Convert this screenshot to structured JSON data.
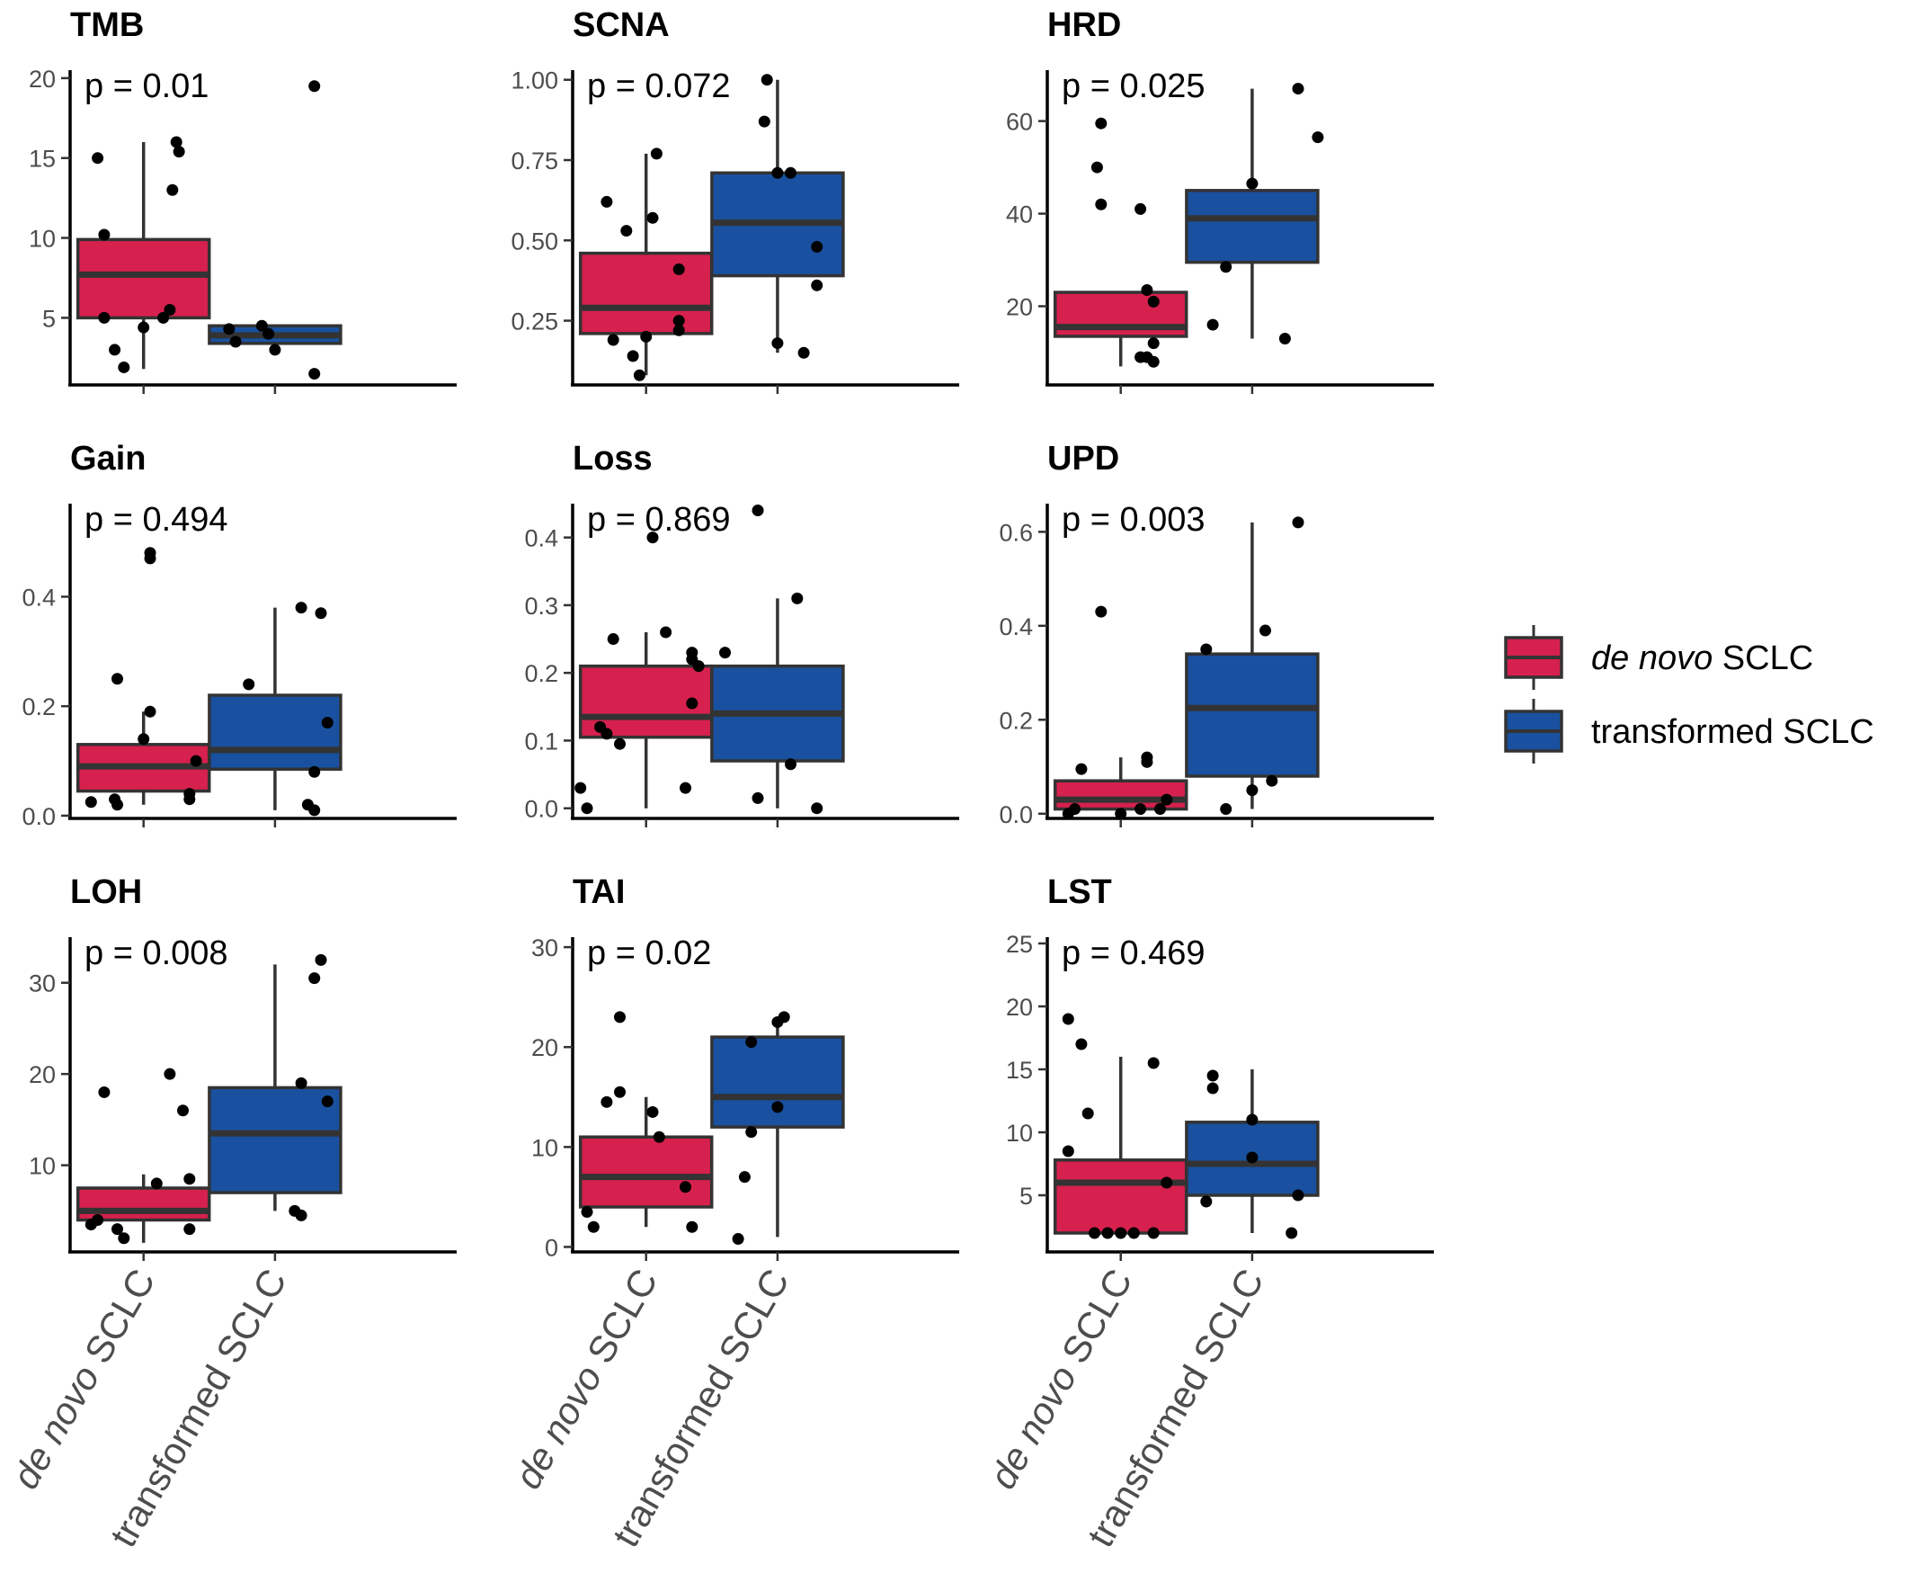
{
  "legend": {
    "items": [
      {
        "italic": "de novo",
        "rest": " SCLC",
        "color": "#d6204e"
      },
      {
        "italic": "",
        "rest": "transformed SCLC",
        "color": "#1951a0"
      }
    ]
  },
  "chart_data": [
    {
      "type": "box",
      "title": "TMB",
      "pvalue": "p = 0.01",
      "categories": [
        "de novo SCLC",
        "transformed SCLC"
      ],
      "yticks": [
        "5",
        "10",
        "15",
        "20"
      ],
      "ylim": [
        0.8,
        20.5
      ],
      "boxes": [
        {
          "whisker_low": 1.8,
          "q1": 5.0,
          "median": 7.7,
          "q3": 9.9,
          "whisker_high": 16.0
        },
        {
          "whisker_low": 3.4,
          "q1": 3.4,
          "median": 3.9,
          "q3": 4.5,
          "whisker_high": 4.5
        }
      ],
      "points": [
        [
          [
            -0.35,
            15.0
          ],
          [
            -0.3,
            10.2
          ],
          [
            -0.3,
            5.0
          ],
          [
            -0.22,
            3.0
          ],
          [
            -0.15,
            1.9
          ],
          [
            0.0,
            4.4
          ],
          [
            0.15,
            5.0
          ],
          [
            0.22,
            13.0
          ],
          [
            0.25,
            16.0
          ],
          [
            0.27,
            15.4
          ],
          [
            0.2,
            5.5
          ]
        ],
        [
          [
            -0.35,
            4.3
          ],
          [
            -0.3,
            3.5
          ],
          [
            -0.1,
            4.5
          ],
          [
            -0.05,
            4.0
          ],
          [
            0.0,
            3.0
          ],
          [
            0.3,
            1.5
          ],
          [
            0.3,
            19.5
          ]
        ]
      ]
    },
    {
      "type": "box",
      "title": "SCNA",
      "pvalue": "p = 0.072",
      "categories": [
        "de novo SCLC",
        "transformed SCLC"
      ],
      "yticks": [
        "0.25",
        "0.50",
        "0.75",
        "1.00"
      ],
      "ylim": [
        0.05,
        1.03
      ],
      "boxes": [
        {
          "whisker_low": 0.08,
          "q1": 0.21,
          "median": 0.29,
          "q3": 0.46,
          "whisker_high": 0.77
        },
        {
          "whisker_low": 0.15,
          "q1": 0.39,
          "median": 0.555,
          "q3": 0.71,
          "whisker_high": 1.0
        }
      ],
      "points": [
        [
          [
            -0.3,
            0.62
          ],
          [
            -0.15,
            0.53
          ],
          [
            -0.25,
            0.19
          ],
          [
            -0.05,
            0.08
          ],
          [
            -0.1,
            0.14
          ],
          [
            0.05,
            0.57
          ],
          [
            0.08,
            0.77
          ],
          [
            0.25,
            0.41
          ],
          [
            0.25,
            0.25
          ],
          [
            0.25,
            0.22
          ],
          [
            0.0,
            0.2
          ]
        ],
        [
          [
            -0.1,
            0.87
          ],
          [
            -0.08,
            1.0
          ],
          [
            0.0,
            0.71
          ],
          [
            0.0,
            0.18
          ],
          [
            0.2,
            0.15
          ],
          [
            0.3,
            0.36
          ],
          [
            0.3,
            0.48
          ],
          [
            0.1,
            0.71
          ]
        ]
      ]
    },
    {
      "type": "box",
      "title": "HRD",
      "pvalue": "p = 0.025",
      "categories": [
        "de novo SCLC",
        "transformed SCLC"
      ],
      "yticks": [
        "20",
        "40",
        "60"
      ],
      "ylim": [
        3,
        71
      ],
      "boxes": [
        {
          "whisker_low": 7.0,
          "q1": 13.5,
          "median": 15.5,
          "q3": 23.0,
          "whisker_high": 23.0
        },
        {
          "whisker_low": 13.0,
          "q1": 29.5,
          "median": 39.0,
          "q3": 45.0,
          "whisker_high": 67.0
        }
      ],
      "points": [
        [
          [
            -0.15,
            59.5
          ],
          [
            -0.18,
            50.0
          ],
          [
            -0.15,
            42.0
          ],
          [
            0.15,
            41.0
          ],
          [
            0.15,
            9.0
          ],
          [
            0.2,
            9.0
          ],
          [
            0.25,
            8.0
          ],
          [
            0.25,
            12.0
          ],
          [
            0.2,
            23.5
          ],
          [
            0.25,
            21.0
          ]
        ],
        [
          [
            -0.2,
            28.5
          ],
          [
            -0.3,
            16.0
          ],
          [
            0.0,
            46.5
          ],
          [
            0.25,
            13.0
          ],
          [
            0.35,
            67.0
          ],
          [
            0.5,
            56.5
          ]
        ]
      ]
    },
    {
      "type": "box",
      "title": "Gain",
      "pvalue": "p = 0.494",
      "categories": [
        "de novo SCLC",
        "transformed SCLC"
      ],
      "yticks": [
        "0.0",
        "0.2",
        "0.4"
      ],
      "ylim": [
        -0.005,
        0.57
      ],
      "boxes": [
        {
          "whisker_low": 0.02,
          "q1": 0.045,
          "median": 0.09,
          "q3": 0.13,
          "whisker_high": 0.19
        },
        {
          "whisker_low": 0.01,
          "q1": 0.085,
          "median": 0.12,
          "q3": 0.22,
          "whisker_high": 0.38
        }
      ],
      "points": [
        [
          [
            -0.4,
            0.025
          ],
          [
            -0.22,
            0.03
          ],
          [
            -0.2,
            0.02
          ],
          [
            -0.2,
            0.25
          ],
          [
            0.0,
            0.14
          ],
          [
            0.05,
            0.48
          ],
          [
            0.05,
            0.47
          ],
          [
            0.05,
            0.19
          ],
          [
            0.35,
            0.03
          ],
          [
            0.35,
            0.04
          ],
          [
            0.4,
            0.1
          ]
        ],
        [
          [
            -0.2,
            0.24
          ],
          [
            0.2,
            0.38
          ],
          [
            0.25,
            0.02
          ],
          [
            0.3,
            0.08
          ],
          [
            0.3,
            0.01
          ],
          [
            0.35,
            0.37
          ],
          [
            0.4,
            0.17
          ]
        ]
      ]
    },
    {
      "type": "box",
      "title": "Loss",
      "pvalue": "p = 0.869",
      "categories": [
        "de novo SCLC",
        "transformed SCLC"
      ],
      "yticks": [
        "0.0",
        "0.1",
        "0.2",
        "0.3",
        "0.4"
      ],
      "ylim": [
        -0.015,
        0.45
      ],
      "boxes": [
        {
          "whisker_low": 0.0,
          "q1": 0.105,
          "median": 0.135,
          "q3": 0.21,
          "whisker_high": 0.26
        },
        {
          "whisker_low": 0.0,
          "q1": 0.07,
          "median": 0.14,
          "q3": 0.21,
          "whisker_high": 0.31
        }
      ],
      "points": [
        [
          [
            -0.5,
            0.03
          ],
          [
            -0.45,
            0.0
          ],
          [
            -0.35,
            0.12
          ],
          [
            -0.3,
            0.11
          ],
          [
            -0.25,
            0.25
          ],
          [
            -0.2,
            0.095
          ],
          [
            0.05,
            0.4
          ],
          [
            0.15,
            0.26
          ],
          [
            0.3,
            0.03
          ],
          [
            0.35,
            0.23
          ],
          [
            0.35,
            0.22
          ],
          [
            0.35,
            0.155
          ],
          [
            0.4,
            0.21
          ]
        ],
        [
          [
            -0.4,
            0.23
          ],
          [
            -0.15,
            0.44
          ],
          [
            -0.15,
            0.015
          ],
          [
            0.15,
            0.31
          ],
          [
            0.1,
            0.065
          ],
          [
            0.3,
            0.0
          ]
        ]
      ]
    },
    {
      "type": "box",
      "title": "UPD",
      "pvalue": "p = 0.003",
      "categories": [
        "de novo SCLC",
        "transformed SCLC"
      ],
      "yticks": [
        "0.0",
        "0.2",
        "0.4",
        "0.6"
      ],
      "ylim": [
        -0.01,
        0.66
      ],
      "boxes": [
        {
          "whisker_low": 0.0,
          "q1": 0.01,
          "median": 0.03,
          "q3": 0.07,
          "whisker_high": 0.12
        },
        {
          "whisker_low": 0.01,
          "q1": 0.08,
          "median": 0.225,
          "q3": 0.34,
          "whisker_high": 0.62
        }
      ],
      "points": [
        [
          [
            -0.4,
            0.0
          ],
          [
            -0.35,
            0.01
          ],
          [
            -0.3,
            0.095
          ],
          [
            -0.15,
            0.43
          ],
          [
            0.0,
            0.0
          ],
          [
            0.15,
            0.01
          ],
          [
            0.2,
            0.12
          ],
          [
            0.2,
            0.11
          ],
          [
            0.3,
            0.01
          ],
          [
            0.35,
            0.03
          ]
        ],
        [
          [
            -0.2,
            0.01
          ],
          [
            -0.35,
            0.35
          ],
          [
            0.0,
            0.05
          ],
          [
            0.1,
            0.39
          ],
          [
            0.15,
            0.07
          ],
          [
            0.35,
            0.62
          ]
        ]
      ]
    },
    {
      "type": "box",
      "title": "LOH",
      "pvalue": "p = 0.008",
      "categories": [
        "de novo SCLC",
        "transformed SCLC"
      ],
      "yticks": [
        "10",
        "20",
        "30"
      ],
      "ylim": [
        0.5,
        35
      ],
      "boxes": [
        {
          "whisker_low": 1.5,
          "q1": 4.0,
          "median": 5.0,
          "q3": 7.5,
          "whisker_high": 9.0
        },
        {
          "whisker_low": 5.0,
          "q1": 7.0,
          "median": 13.5,
          "q3": 18.5,
          "whisker_high": 32.0
        }
      ],
      "points": [
        [
          [
            -0.4,
            3.5
          ],
          [
            -0.35,
            4.0
          ],
          [
            -0.3,
            18.0
          ],
          [
            -0.2,
            3.0
          ],
          [
            -0.15,
            2.0
          ],
          [
            0.1,
            8.0
          ],
          [
            0.2,
            20.0
          ],
          [
            0.3,
            16.0
          ],
          [
            0.35,
            3.0
          ],
          [
            0.35,
            8.5
          ]
        ],
        [
          [
            0.15,
            5.0
          ],
          [
            0.2,
            4.5
          ],
          [
            0.2,
            19.0
          ],
          [
            0.3,
            30.5
          ],
          [
            0.35,
            32.5
          ],
          [
            0.4,
            17.0
          ]
        ]
      ]
    },
    {
      "type": "box",
      "title": "TAI",
      "pvalue": "p = 0.02",
      "categories": [
        "de novo SCLC",
        "transformed SCLC"
      ],
      "yticks": [
        "0",
        "10",
        "20",
        "30"
      ],
      "ylim": [
        -0.5,
        31
      ],
      "boxes": [
        {
          "whisker_low": 2.0,
          "q1": 4.0,
          "median": 7.0,
          "q3": 11.0,
          "whisker_high": 15.0
        },
        {
          "whisker_low": 1.0,
          "q1": 12.0,
          "median": 15.0,
          "q3": 21.0,
          "whisker_high": 23.0
        }
      ],
      "points": [
        [
          [
            -0.4,
            2.0
          ],
          [
            -0.45,
            3.5
          ],
          [
            -0.3,
            14.5
          ],
          [
            -0.2,
            15.5
          ],
          [
            -0.2,
            23.0
          ],
          [
            0.05,
            13.5
          ],
          [
            0.1,
            11.0
          ],
          [
            0.3,
            6.0
          ],
          [
            0.35,
            2.0
          ]
        ],
        [
          [
            -0.3,
            0.8
          ],
          [
            -0.25,
            7.0
          ],
          [
            -0.2,
            11.5
          ],
          [
            -0.2,
            20.5
          ],
          [
            0.0,
            14.0
          ],
          [
            0.0,
            22.5
          ],
          [
            0.05,
            23.0
          ]
        ]
      ]
    },
    {
      "type": "box",
      "title": "LST",
      "pvalue": "p = 0.469",
      "categories": [
        "de novo SCLC",
        "transformed SCLC"
      ],
      "yticks": [
        "5",
        "10",
        "15",
        "20",
        "25"
      ],
      "ylim": [
        0.5,
        25.5
      ],
      "boxes": [
        {
          "whisker_low": 2.0,
          "q1": 2.0,
          "median": 6.0,
          "q3": 7.8,
          "whisker_high": 16.0
        },
        {
          "whisker_low": 2.0,
          "q1": 5.0,
          "median": 7.5,
          "q3": 10.8,
          "whisker_high": 15.0
        }
      ],
      "points": [
        [
          [
            -0.4,
            19.0
          ],
          [
            -0.3,
            17.0
          ],
          [
            -0.25,
            11.5
          ],
          [
            -0.4,
            8.5
          ],
          [
            -0.2,
            2.0
          ],
          [
            -0.1,
            2.0
          ],
          [
            0.0,
            2.0
          ],
          [
            0.1,
            2.0
          ],
          [
            0.25,
            15.5
          ],
          [
            0.25,
            2.0
          ],
          [
            0.35,
            6.0
          ]
        ],
        [
          [
            -0.35,
            4.5
          ],
          [
            -0.3,
            14.5
          ],
          [
            -0.3,
            13.5
          ],
          [
            0.0,
            8.0
          ],
          [
            0.0,
            11.0
          ],
          [
            0.3,
            2.0
          ],
          [
            0.35,
            5.0
          ]
        ]
      ]
    }
  ]
}
